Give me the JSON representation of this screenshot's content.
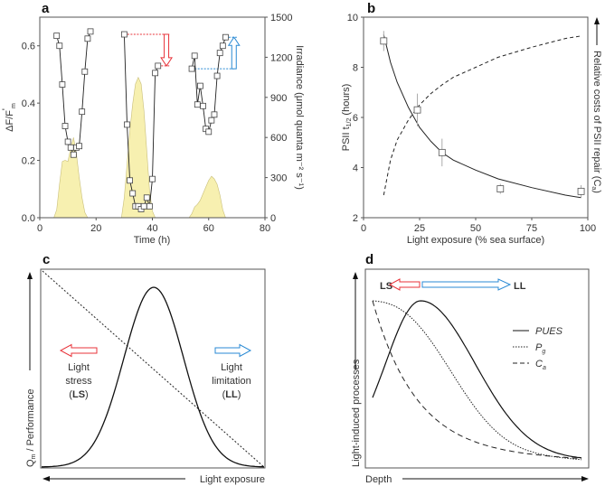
{
  "chart_data": [
    {
      "panel": "a",
      "type": "line",
      "xlabel": "Time (h)",
      "ylabel": {
        "main": "ΔF/F",
        "sub": "m",
        "prime": "'"
      },
      "y2label": "Irradiance (μmol quanta m⁻² s⁻¹)",
      "xlim": [
        0,
        80
      ],
      "ylim": [
        0,
        0.7
      ],
      "y2lim": [
        0,
        1500
      ],
      "xticks": [
        "0",
        "20",
        "40",
        "60",
        "80"
      ],
      "yticks": [
        "0.0",
        "0.2",
        "0.4",
        "0.6"
      ],
      "y2ticks": [
        "0",
        "300",
        "600",
        "900",
        "1200",
        "1500"
      ],
      "series": [
        {
          "axis": "left",
          "marker": "open-square",
          "segments": [
            {
              "x": [
                6,
                7,
                8,
                9,
                10,
                11,
                12,
                13,
                14,
                15,
                16,
                17,
                18
              ],
              "y": [
                0.635,
                0.6,
                0.465,
                0.32,
                0.265,
                0.245,
                0.22,
                0.245,
                0.25,
                0.37,
                0.51,
                0.625,
                0.65
              ]
            },
            {
              "x": [
                30,
                31,
                32,
                33,
                34,
                35,
                36,
                37,
                38,
                39,
                40,
                41,
                42
              ],
              "y": [
                0.64,
                0.325,
                0.13,
                0.085,
                0.04,
                0.04,
                0.03,
                0.04,
                0.07,
                0.04,
                0.135,
                0.505,
                0.53
              ]
            },
            {
              "x": [
                54,
                55,
                56,
                57,
                58,
                59,
                60,
                61,
                62,
                63,
                64,
                65,
                66
              ],
              "y": [
                0.52,
                0.565,
                0.395,
                0.46,
                0.39,
                0.31,
                0.3,
                0.34,
                0.36,
                0.495,
                0.575,
                0.6,
                0.63
              ]
            }
          ]
        },
        {
          "axis": "right",
          "type": "area",
          "color": "#f7f0b0",
          "segments": [
            {
              "x": [
                5,
                6,
                7,
                8,
                9,
                10,
                11,
                12,
                13,
                14,
                15,
                16,
                17
              ],
              "y": [
                0,
                60,
                250,
                420,
                430,
                420,
                520,
                600,
                480,
                300,
                150,
                40,
                0
              ]
            },
            {
              "x": [
                29,
                30,
                31,
                32,
                33,
                34,
                35,
                36,
                37,
                38,
                39,
                40,
                41
              ],
              "y": [
                0,
                150,
                400,
                650,
                850,
                1000,
                1050,
                1000,
                800,
                500,
                200,
                50,
                0
              ]
            },
            {
              "x": [
                53,
                54,
                55,
                56,
                57,
                58,
                59,
                60,
                61,
                62,
                63,
                64,
                65,
                66
              ],
              "y": [
                0,
                30,
                80,
                100,
                130,
                180,
                230,
                280,
                310,
                290,
                250,
                170,
                60,
                0
              ]
            }
          ]
        }
      ],
      "annotations": [
        {
          "type": "down-arrow",
          "color": "#e8333a",
          "x": 45,
          "from": 0.64,
          "to": 0.53
        },
        {
          "type": "up-arrow",
          "color": "#2a8ad4",
          "x": 69,
          "from": 0.52,
          "to": 0.63
        }
      ]
    },
    {
      "panel": "b",
      "type": "scatter",
      "xlabel": "Light exposure (% sea surface)",
      "ylabel": {
        "main": "PSII t",
        "sub": "1/2",
        "rest": " (hours)"
      },
      "y2label": {
        "main": "Relative costs of PSII repair (C",
        "sub": "a",
        "rest": ")"
      },
      "xlim": [
        0,
        100
      ],
      "ylim": [
        2,
        10
      ],
      "xticks": [
        "0",
        "25",
        "50",
        "75",
        "100"
      ],
      "yticks": [
        "2",
        "4",
        "6",
        "8",
        "10"
      ],
      "points": {
        "x": [
          9,
          24,
          35,
          61,
          97
        ],
        "y": [
          9.05,
          6.3,
          4.6,
          3.15,
          3.05
        ],
        "err": [
          0.4,
          0.65,
          0.55,
          0.2,
          0.25
        ]
      },
      "fit_solid": {
        "x": [
          9,
          12,
          15,
          20,
          25,
          30,
          35,
          40,
          50,
          60,
          75,
          90,
          97
        ],
        "y": [
          9.3,
          8.2,
          7.4,
          6.4,
          5.6,
          5.05,
          4.6,
          4.3,
          3.9,
          3.55,
          3.2,
          2.9,
          2.8
        ]
      },
      "fit_dashed": {
        "x": [
          9,
          12,
          15,
          20,
          25,
          30,
          35,
          40,
          50,
          60,
          75,
          90,
          97
        ],
        "y": [
          2.9,
          4.3,
          5.1,
          5.9,
          6.5,
          6.95,
          7.3,
          7.6,
          8.0,
          8.4,
          8.8,
          9.15,
          9.25
        ]
      }
    },
    {
      "panel": "c",
      "type": "line",
      "ylabel": {
        "main": "Q",
        "sub": "m",
        "rest": " / Performance"
      },
      "xlabel": "Light exposure",
      "annotations": {
        "ls": {
          "l1": "Light",
          "l2": "stress",
          "open": "(",
          "abbr": "LS",
          "close": ")",
          "color": "#e8333a"
        },
        "ll": {
          "l1": "Light",
          "l2": "limitation",
          "open": "(",
          "abbr": "LL",
          "close": ")",
          "color": "#2a8ad4"
        }
      }
    },
    {
      "panel": "d",
      "type": "line",
      "ylabel": "Light-induced processes",
      "xlabel": "Depth",
      "arrows": {
        "ls": "LS",
        "ll": "LL"
      },
      "legend": [
        {
          "name": "PUES",
          "style": "solid"
        },
        {
          "name": "P",
          "sub": "g",
          "style": "dotted"
        },
        {
          "name": "C",
          "sub": "a",
          "style": "dashed"
        }
      ],
      "legend_position": "right"
    }
  ],
  "panel_labels": [
    "a",
    "b",
    "c",
    "d"
  ]
}
